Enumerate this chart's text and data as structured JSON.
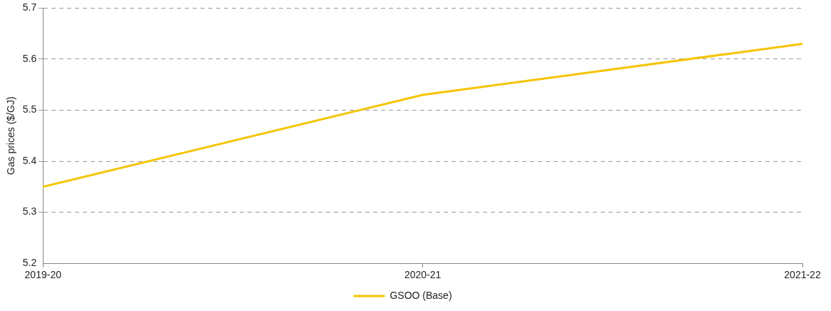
{
  "chart_data": {
    "type": "line",
    "ylabel": "Gas prices ($/GJ)",
    "categories": [
      "2019-20",
      "2020-21",
      "2021-22"
    ],
    "series": [
      {
        "name": "GSOO (Base)",
        "color": "#f5c400",
        "values": [
          5.35,
          5.53,
          5.63
        ]
      }
    ],
    "ylim": [
      5.2,
      5.7
    ],
    "yticks": [
      5.2,
      5.3,
      5.4,
      5.5,
      5.6,
      5.7
    ],
    "grid": "y",
    "legend": "bottom",
    "marker": "none",
    "line_style": "solid"
  }
}
